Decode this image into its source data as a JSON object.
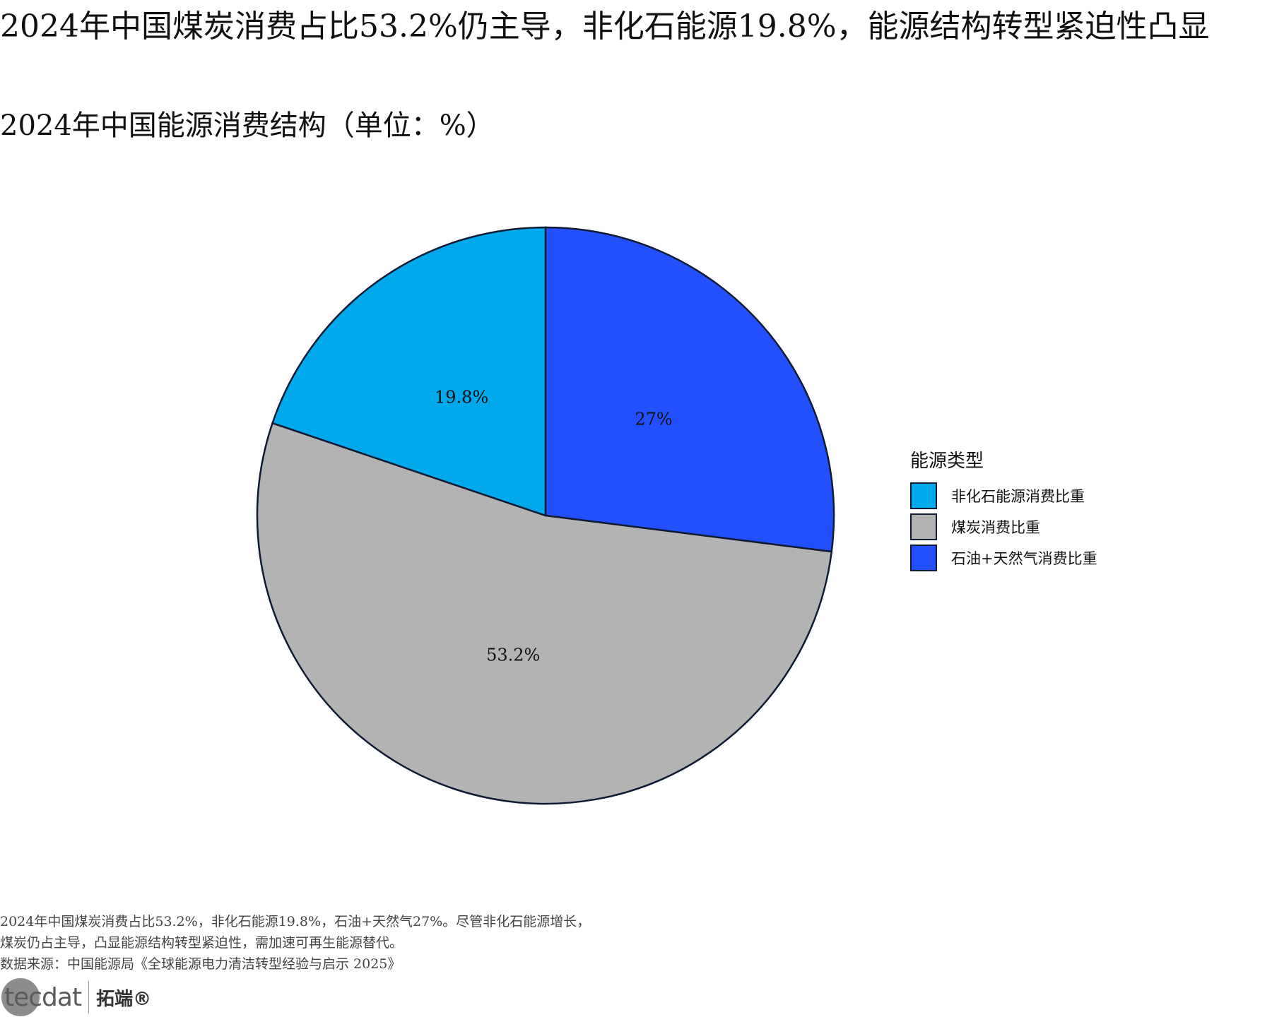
{
  "title": "2024年中国煤炭消费占比53.2%仍主导，非化石能源19.8%，能源结构转型紧迫性凸显",
  "subtitle": "2024年中国能源消费结构（单位：%）",
  "legend_title": "能源类型",
  "chart_data": {
    "type": "pie",
    "slices": [
      {
        "label": "石油+天然气消费比重",
        "value": 27,
        "display": "27%",
        "color": "#2250ff"
      },
      {
        "label": "煤炭消费比重",
        "value": 53.2,
        "display": "53.2%",
        "color": "#b3b3b3"
      },
      {
        "label": "非化石能源消费比重",
        "value": 19.8,
        "display": "19.8%",
        "color": "#00a8ec"
      }
    ],
    "legend_order": [
      "非化石能源消费比重",
      "煤炭消费比重",
      "石油+天然气消费比重"
    ],
    "legend_position": "right",
    "start": "12 o'clock",
    "direction": "clockwise",
    "edge_color": "#0f1b33"
  },
  "caption_lines": [
    "2024年中国煤炭消费占比53.2%，非化石能源19.8%，石油+天然气27%。尽管非化石能源增长，",
    "煤炭仍占主导，凸显能源结构转型紧迫性，需加速可再生能源替代。",
    "数据来源：中国能源局《全球能源电力清洁转型经验与启示 2025》"
  ],
  "logo": {
    "text": "tecdat",
    "cn": "拓端®"
  }
}
